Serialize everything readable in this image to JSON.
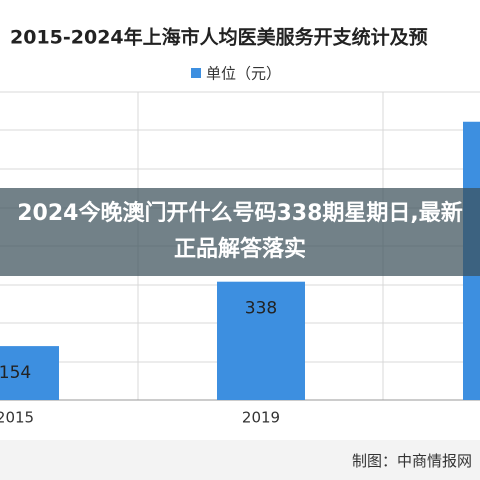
{
  "chart_data": {
    "type": "bar",
    "title": "2015-2024年上海市人均医美服务开支统计及预",
    "legend": "单位（元）",
    "categories": [
      "2015",
      "2019",
      null
    ],
    "values": [
      154,
      338,
      795
    ],
    "color": "#3d8fe0",
    "ylim": [
      0,
      1000
    ],
    "grid": true
  },
  "overlay": {
    "headline": "2024今晚澳门开什么号码338期星期日,最新正品解答落实"
  },
  "footer": {
    "credit": "制图：中商情报网"
  }
}
